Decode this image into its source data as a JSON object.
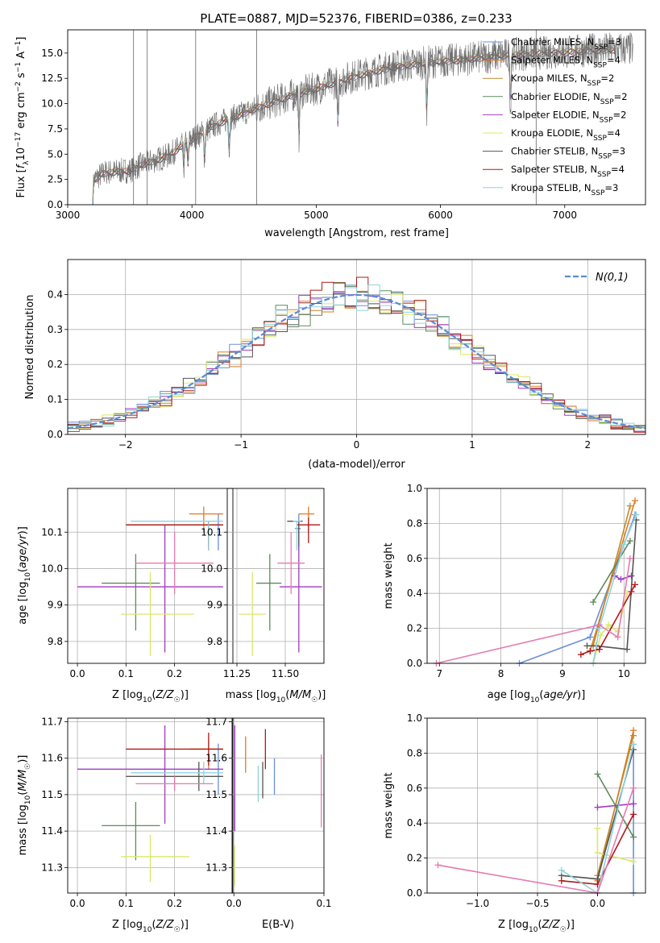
{
  "colors": {
    "chabrier_miles": "#6a8fd8",
    "salpeter_miles": "#e07b25",
    "kroupa_miles": "#c08a2a",
    "chabrier_elodie": "#5e8a5e",
    "salpeter_elodie": "#a23bc0",
    "kroupa_elodie": "#d9e86a",
    "chabrier_stelib": "#555555",
    "salpeter_stelib": "#b01818",
    "kroupa_stelib": "#8fd3dd",
    "pink": "#e57bb0",
    "gauss": "#5b8ad6",
    "spectrum": "#707070"
  },
  "chart_data": [
    {
      "type": "line",
      "title": "PLATE=0887, MJD=52376, FIBERID=0386, z=0.233",
      "xlabel": "wavelength [Angstrom, rest frame]",
      "ylabel": "Flux [f_λ 10^-17 erg cm^-2 s^-1 A^-1]",
      "xlim": [
        3000,
        7650
      ],
      "ylim": [
        0,
        17.3
      ],
      "xticks": [
        3000,
        4000,
        5000,
        6000,
        7000
      ],
      "yticks": [
        0.0,
        2.5,
        5.0,
        7.5,
        10.0,
        12.5,
        15.0
      ],
      "legend_position": "upper right",
      "legend": [
        {
          "label": "Chabrier MILES, N",
          "sub": "SSP",
          "suffix": "=3"
        },
        {
          "label": "Salpeter MILES, N",
          "sub": "SSP",
          "suffix": "=4"
        },
        {
          "label": "Kroupa MILES, N",
          "sub": "SSP",
          "suffix": "=2"
        },
        {
          "label": "Chabrier ELODIE, N",
          "sub": "SSP",
          "suffix": "=2"
        },
        {
          "label": "Salpeter ELODIE, N",
          "sub": "SSP",
          "suffix": "=2"
        },
        {
          "label": "Kroupa ELODIE, N",
          "sub": "SSP",
          "suffix": "=4"
        },
        {
          "label": "Chabrier STELIB, N",
          "sub": "SSP",
          "suffix": "=3"
        },
        {
          "label": "Salpeter STELIB, N",
          "sub": "SSP",
          "suffix": "=4"
        },
        {
          "label": "Kroupa STELIB, N",
          "sub": "SSP",
          "suffix": "=3"
        }
      ],
      "continuum": [
        [
          3200,
          0
        ],
        [
          3210,
          2.5
        ],
        [
          3300,
          3.2
        ],
        [
          3500,
          3.4
        ],
        [
          3600,
          4.0
        ],
        [
          3800,
          4.8
        ],
        [
          4000,
          6.5
        ],
        [
          4200,
          8.0
        ],
        [
          4500,
          9.5
        ],
        [
          4800,
          10.8
        ],
        [
          5000,
          11.5
        ],
        [
          5300,
          12.7
        ],
        [
          5600,
          13.6
        ],
        [
          5900,
          14.1
        ],
        [
          6200,
          14.4
        ],
        [
          6500,
          14.8
        ],
        [
          6800,
          15.0
        ],
        [
          7000,
          15.1
        ],
        [
          7200,
          15.3
        ],
        [
          7400,
          15.4
        ]
      ],
      "absorption_lines": [
        3934,
        3968,
        4102,
        4300,
        4861,
        5175,
        5890,
        6563
      ]
    },
    {
      "type": "histogram",
      "xlabel": "(data-model)/error",
      "ylabel": "Normed distribution",
      "xlim": [
        -2.5,
        2.5
      ],
      "ylim": [
        0,
        0.5
      ],
      "xticks": [
        -2,
        -1,
        0,
        1,
        2
      ],
      "yticks": [
        0.0,
        0.1,
        0.2,
        0.3,
        0.4
      ],
      "bin_width": 0.1,
      "legend": "N(0,1)",
      "legend_position": "upper right",
      "gauss": {
        "mean": 0,
        "sigma": 1
      }
    },
    {
      "type": "scatter",
      "xlabel": "Z [log10(Z/Z☉)]",
      "ylabel": "age [log10(age/yr)]",
      "xlim": [
        -0.02,
        0.32
      ],
      "ylim": [
        9.74,
        10.22
      ],
      "xticks": [
        0.0,
        0.1,
        0.2
      ],
      "yticks": [
        9.8,
        9.9,
        10.0,
        10.1
      ],
      "points": [
        {
          "c": "chabrier_miles",
          "x": 0.29,
          "y": 10.1,
          "xe": [
            0.29,
            0.29
          ],
          "ye": [
            10.05,
            10.15
          ]
        },
        {
          "c": "salpeter_miles",
          "x": 0.26,
          "y": 10.15,
          "xe": [
            0.23,
            0.3
          ],
          "ye": [
            10.1,
            10.17
          ]
        },
        {
          "c": "chabrier_elodie",
          "x": 0.12,
          "y": 9.96,
          "xe": [
            0.05,
            0.17
          ],
          "ye": [
            9.83,
            10.04
          ]
        },
        {
          "c": "salpeter_elodie",
          "x": 0.18,
          "y": 9.95,
          "xe": [
            0.0,
            0.3
          ],
          "ye": [
            9.77,
            10.12
          ]
        },
        {
          "c": "kroupa_elodie",
          "x": 0.15,
          "y": 9.875,
          "xe": [
            0.09,
            0.24
          ],
          "ye": [
            9.76,
            9.99
          ]
        },
        {
          "c": "chabrier_stelib",
          "x": 0.27,
          "y": 10.12,
          "xe": [
            0.1,
            0.3
          ],
          "ye": [
            10.06,
            10.13
          ]
        },
        {
          "c": "salpeter_stelib",
          "x": 0.27,
          "y": 10.12,
          "xe": [
            0.1,
            0.3
          ],
          "ye": [
            10.05,
            10.13
          ]
        },
        {
          "c": "kroupa_stelib",
          "x": 0.27,
          "y": 10.13,
          "xe": [
            0.11,
            0.3
          ],
          "ye": [
            10.05,
            10.13
          ]
        },
        {
          "c": "pink",
          "x": 0.2,
          "y": 10.015,
          "xe": [
            0.12,
            0.28
          ],
          "ye": [
            9.93,
            10.1
          ]
        }
      ]
    },
    {
      "type": "scatter",
      "xlabel": "mass [log10(M/M☉)]",
      "xlim": [
        11.2,
        11.7
      ],
      "ylim": [
        9.74,
        10.22
      ],
      "xticks": [
        11.25,
        11.5
      ],
      "yticks": [
        9.8,
        9.9,
        10.0,
        10.1
      ],
      "points": [
        {
          "c": "chabrier_miles",
          "x": 11.57,
          "y": 10.11,
          "xe": [
            11.55,
            11.58
          ],
          "ye": [
            10.05,
            10.15
          ]
        },
        {
          "c": "salpeter_miles",
          "x": 11.62,
          "y": 10.15,
          "xe": [
            11.57,
            11.65
          ],
          "ye": [
            10.1,
            10.17
          ]
        },
        {
          "c": "chabrier_elodie",
          "x": 11.42,
          "y": 9.96,
          "xe": [
            11.35,
            11.48
          ],
          "ye": [
            9.83,
            10.04
          ]
        },
        {
          "c": "salpeter_elodie",
          "x": 11.57,
          "y": 9.95,
          "xe": [
            11.47,
            11.69
          ],
          "ye": [
            9.77,
            10.12
          ]
        },
        {
          "c": "kroupa_elodie",
          "x": 11.33,
          "y": 9.875,
          "xe": [
            11.26,
            11.4
          ],
          "ye": [
            9.76,
            9.99
          ]
        },
        {
          "c": "chabrier_stelib",
          "x": 11.57,
          "y": 10.13,
          "xe": [
            11.51,
            11.59
          ],
          "ye": [
            10.06,
            10.13
          ]
        },
        {
          "c": "salpeter_stelib",
          "x": 11.62,
          "y": 10.12,
          "xe": [
            11.56,
            11.68
          ],
          "ye": [
            10.07,
            10.14
          ]
        },
        {
          "c": "kroupa_stelib",
          "x": 11.56,
          "y": 10.13,
          "xe": [
            11.54,
            11.58
          ],
          "ye": [
            10.05,
            10.13
          ]
        },
        {
          "c": "pink",
          "x": 11.53,
          "y": 10.015,
          "xe": [
            11.46,
            11.6
          ],
          "ye": [
            9.93,
            10.1
          ]
        }
      ]
    },
    {
      "type": "line",
      "xlabel": "age  [log10(age/yr)]",
      "ylabel": "mass weight",
      "xlim": [
        6.8,
        10.35
      ],
      "ylim": [
        0,
        1.0
      ],
      "xticks": [
        7,
        8,
        9,
        10
      ],
      "yticks": [
        0.0,
        0.2,
        0.4,
        0.6,
        0.8,
        1.0
      ],
      "series": [
        {
          "c": "chabrier_miles",
          "pts": [
            [
              8.3,
              0.0
            ],
            [
              9.45,
              0.15
            ],
            [
              10.18,
              0.85
            ]
          ]
        },
        {
          "c": "salpeter_miles",
          "pts": [
            [
              9.45,
              0.07
            ],
            [
              10.18,
              0.93
            ]
          ]
        },
        {
          "c": "kroupa_miles",
          "pts": [
            [
              9.5,
              0.1
            ],
            [
              10.1,
              0.9
            ]
          ]
        },
        {
          "c": "chabrier_elodie",
          "pts": [
            [
              9.5,
              0.35
            ],
            [
              10.1,
              0.7
            ]
          ]
        },
        {
          "c": "salpeter_elodie",
          "pts": [
            [
              9.85,
              0.5
            ],
            [
              9.95,
              0.48
            ],
            [
              10.12,
              0.5
            ]
          ]
        },
        {
          "c": "kroupa_elodie",
          "pts": [
            [
              9.5,
              0.0
            ],
            [
              9.62,
              0.16
            ],
            [
              9.75,
              0.22
            ],
            [
              9.9,
              0.18
            ],
            [
              10.05,
              0.4
            ]
          ]
        },
        {
          "c": "chabrier_stelib",
          "pts": [
            [
              9.4,
              0.1
            ],
            [
              9.55,
              0.1
            ],
            [
              10.05,
              0.08
            ],
            [
              10.2,
              0.82
            ]
          ]
        },
        {
          "c": "salpeter_stelib",
          "pts": [
            [
              9.3,
              0.05
            ],
            [
              9.45,
              0.07
            ],
            [
              9.6,
              0.08
            ],
            [
              10.12,
              0.41
            ],
            [
              10.18,
              0.45
            ]
          ]
        },
        {
          "c": "kroupa_stelib",
          "pts": [
            [
              9.5,
              0.0
            ],
            [
              9.6,
              0.2
            ],
            [
              10.0,
              0.68
            ],
            [
              10.2,
              0.85
            ]
          ]
        },
        {
          "c": "pink",
          "pts": [
            [
              6.95,
              0.0
            ],
            [
              9.6,
              0.22
            ],
            [
              9.9,
              0.15
            ],
            [
              10.1,
              0.6
            ]
          ]
        }
      ]
    },
    {
      "type": "scatter",
      "xlabel": "Z [log10(Z/Z☉)]",
      "ylabel": "mass [log10(M/M☉)]",
      "xlim": [
        -0.02,
        0.32
      ],
      "ylim": [
        11.23,
        11.71
      ],
      "xticks": [
        0.0,
        0.1,
        0.2
      ],
      "yticks": [
        11.3,
        11.4,
        11.5,
        11.6,
        11.7
      ],
      "points": [
        {
          "c": "chabrier_miles",
          "x": 0.29,
          "y": 11.57,
          "xe": [
            0.29,
            0.29
          ],
          "ye": [
            11.5,
            11.64
          ]
        },
        {
          "c": "salpeter_miles",
          "x": 0.27,
          "y": 11.625,
          "xe": [
            0.23,
            0.3
          ],
          "ye": [
            11.57,
            11.65
          ]
        },
        {
          "c": "chabrier_elodie",
          "x": 0.12,
          "y": 11.415,
          "xe": [
            0.05,
            0.17
          ],
          "ye": [
            11.32,
            11.48
          ]
        },
        {
          "c": "salpeter_elodie",
          "x": 0.18,
          "y": 11.57,
          "xe": [
            0.0,
            0.3
          ],
          "ye": [
            11.42,
            11.69
          ]
        },
        {
          "c": "kroupa_elodie",
          "x": 0.15,
          "y": 11.33,
          "xe": [
            0.09,
            0.23
          ],
          "ye": [
            11.26,
            11.39
          ]
        },
        {
          "c": "chabrier_stelib",
          "x": 0.25,
          "y": 11.55,
          "xe": [
            0.1,
            0.3
          ],
          "ye": [
            11.51,
            11.59
          ]
        },
        {
          "c": "salpeter_stelib",
          "x": 0.27,
          "y": 11.625,
          "xe": [
            0.1,
            0.3
          ],
          "ye": [
            11.58,
            11.67
          ]
        },
        {
          "c": "kroupa_stelib",
          "x": 0.26,
          "y": 11.56,
          "xe": [
            0.11,
            0.3
          ],
          "ye": [
            11.53,
            11.59
          ]
        },
        {
          "c": "pink",
          "x": 0.2,
          "y": 11.53,
          "xe": [
            0.12,
            0.28
          ],
          "ye": [
            11.51,
            11.55
          ]
        }
      ]
    },
    {
      "type": "scatter",
      "xlabel": "E(B-V)",
      "xlim": [
        -0.002,
        0.1
      ],
      "ylim": [
        11.23,
        11.71
      ],
      "xticks": [
        0.0,
        0.1
      ],
      "yticks": [
        11.3,
        11.4,
        11.5,
        11.6,
        11.7
      ],
      "points": [
        {
          "c": "chabrier_miles",
          "x": 0.045,
          "y": 11.55,
          "ye": [
            11.5,
            11.6
          ]
        },
        {
          "c": "salpeter_miles",
          "x": 0.013,
          "y": 11.61,
          "ye": [
            11.56,
            11.66
          ]
        },
        {
          "c": "chabrier_elodie",
          "x": 0.001,
          "y": 11.45,
          "ye": [
            11.4,
            11.5
          ]
        },
        {
          "c": "salpeter_elodie",
          "x": 0.001,
          "y": 11.55,
          "ye": [
            11.4,
            11.69
          ]
        },
        {
          "c": "kroupa_elodie",
          "x": 0.001,
          "y": 11.3,
          "ye": [
            11.25,
            11.36
          ]
        },
        {
          "c": "chabrier_stelib",
          "x": 0.032,
          "y": 11.54,
          "ye": [
            11.49,
            11.59
          ]
        },
        {
          "c": "salpeter_stelib",
          "x": 0.035,
          "y": 11.62,
          "ye": [
            11.57,
            11.68
          ]
        },
        {
          "c": "kroupa_stelib",
          "x": 0.027,
          "y": 11.53,
          "ye": [
            11.48,
            11.58
          ]
        },
        {
          "c": "pink",
          "x": 0.097,
          "y": 11.51,
          "ye": [
            11.41,
            11.61
          ]
        }
      ]
    },
    {
      "type": "line",
      "xlabel": "Z [log10(Z/Z☉)]",
      "ylabel": "mass weight",
      "xlim": [
        -1.42,
        0.4
      ],
      "ylim": [
        0,
        1.0
      ],
      "xticks": [
        -1.0,
        -0.5,
        0.0
      ],
      "yticks": [
        0.0,
        0.2,
        0.4,
        0.6,
        0.8,
        1.0
      ],
      "series": [
        {
          "c": "chabrier_miles",
          "pts": [
            [
              0.3,
              0.0
            ],
            [
              0.3,
              0.85
            ]
          ]
        },
        {
          "c": "salpeter_miles",
          "pts": [
            [
              0.0,
              0.07
            ],
            [
              0.3,
              0.93
            ]
          ]
        },
        {
          "c": "kroupa_miles",
          "pts": [
            [
              0.0,
              0.1
            ],
            [
              0.3,
              0.9
            ]
          ]
        },
        {
          "c": "chabrier_elodie",
          "pts": [
            [
              0.0,
              0.68
            ],
            [
              0.3,
              0.32
            ]
          ]
        },
        {
          "c": "salpeter_elodie",
          "pts": [
            [
              0.0,
              0.49
            ],
            [
              0.3,
              0.51
            ]
          ]
        },
        {
          "c": "kroupa_elodie",
          "pts": [
            [
              0.0,
              0.37
            ],
            [
              0.0,
              0.23
            ],
            [
              0.3,
              0.18
            ]
          ]
        },
        {
          "c": "chabrier_stelib",
          "pts": [
            [
              -0.3,
              0.1
            ],
            [
              0.0,
              0.08
            ],
            [
              0.3,
              0.82
            ]
          ]
        },
        {
          "c": "salpeter_stelib",
          "pts": [
            [
              -0.3,
              0.07
            ],
            [
              0.0,
              0.05
            ],
            [
              0.3,
              0.45
            ]
          ]
        },
        {
          "c": "kroupa_stelib",
          "pts": [
            [
              -0.3,
              0.13
            ],
            [
              0.0,
              0.0
            ],
            [
              0.3,
              0.85
            ]
          ]
        },
        {
          "c": "pink",
          "pts": [
            [
              -1.33,
              0.16
            ],
            [
              0.0,
              0.0
            ],
            [
              0.3,
              0.6
            ]
          ]
        }
      ]
    }
  ]
}
